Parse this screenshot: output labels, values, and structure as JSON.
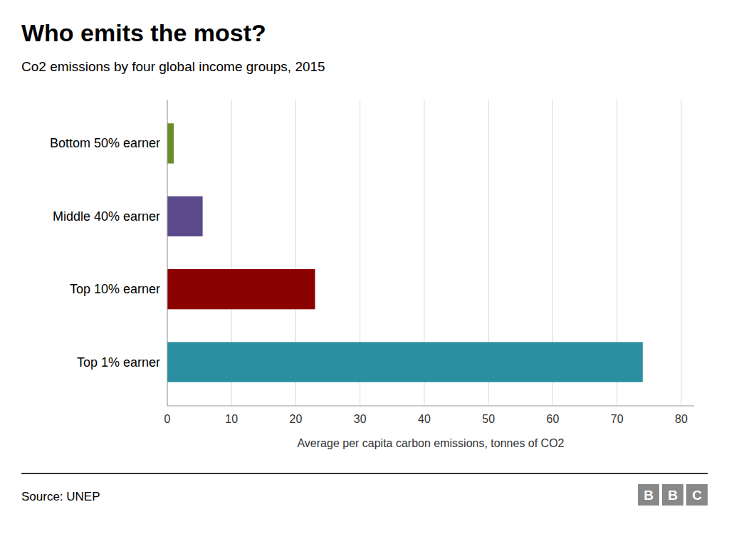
{
  "chart_data": {
    "type": "bar",
    "orientation": "horizontal",
    "title": "Who emits the most?",
    "subtitle": "Co2 emissions by four global income groups, 2015",
    "categories": [
      "Top 1% earner",
      "Top 10% earner",
      "Middle 40% earner",
      "Bottom 50% earner"
    ],
    "values": [
      74,
      23,
      5.5,
      1.0
    ],
    "colors": [
      "#2a8fa0",
      "#8b0000",
      "#5b4b8a",
      "#6b8c2a"
    ],
    "xlabel": "Average per capita carbon emissions, tonnes of CO2",
    "xlim": [
      0,
      82
    ],
    "xticks": [
      0,
      10,
      20,
      30,
      40,
      50,
      60,
      70,
      80
    ],
    "grid": true,
    "source": "Source: UNEP",
    "annotations": [
      "B",
      "B",
      "C"
    ]
  }
}
